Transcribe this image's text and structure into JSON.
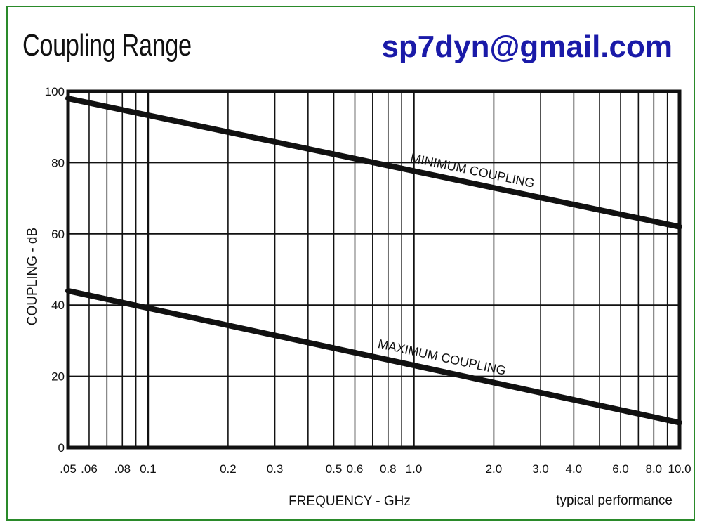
{
  "header": {
    "title": "Coupling Range",
    "email": "sp7dyn@gmail.com"
  },
  "colors": {
    "frame": "#2a8a2a",
    "email": "#1a1aa8",
    "ink": "#111111"
  },
  "chart_data": {
    "type": "line",
    "xscale": "log",
    "xlabel": "FREQUENCY - GHz",
    "ylabel": "COUPLING - dB",
    "note": "typical performance",
    "xlim": [
      0.05,
      10.0
    ],
    "ylim": [
      0,
      100
    ],
    "grid": true,
    "x_tick_values": [
      0.05,
      0.06,
      0.08,
      0.1,
      0.2,
      0.3,
      0.5,
      0.6,
      0.8,
      1.0,
      2.0,
      3.0,
      4.0,
      6.0,
      8.0,
      10.0
    ],
    "x_tick_labels": [
      ".05",
      ".06",
      ".08",
      "0.1",
      "0.2",
      "0.3",
      "0.5",
      "0.6",
      "0.8",
      "1.0",
      "2.0",
      "3.0",
      "4.0",
      "6.0",
      "8.0",
      "10.0"
    ],
    "x_grid_values": [
      0.05,
      0.06,
      0.07,
      0.08,
      0.09,
      0.1,
      0.2,
      0.3,
      0.4,
      0.5,
      0.6,
      0.7,
      0.8,
      0.9,
      1.0,
      2.0,
      3.0,
      4.0,
      5.0,
      6.0,
      7.0,
      8.0,
      9.0,
      10.0
    ],
    "y_ticks": [
      0,
      20,
      40,
      60,
      80,
      100
    ],
    "y_tick_labels": [
      "0",
      "20",
      "40",
      "60",
      "80",
      "100"
    ],
    "series": [
      {
        "name": "MINIMUM COUPLING",
        "x": [
          0.05,
          10.0
        ],
        "y": [
          98,
          62
        ]
      },
      {
        "name": "MAXIMUM COUPLING",
        "x": [
          0.05,
          10.0
        ],
        "y": [
          44,
          7
        ]
      }
    ]
  }
}
